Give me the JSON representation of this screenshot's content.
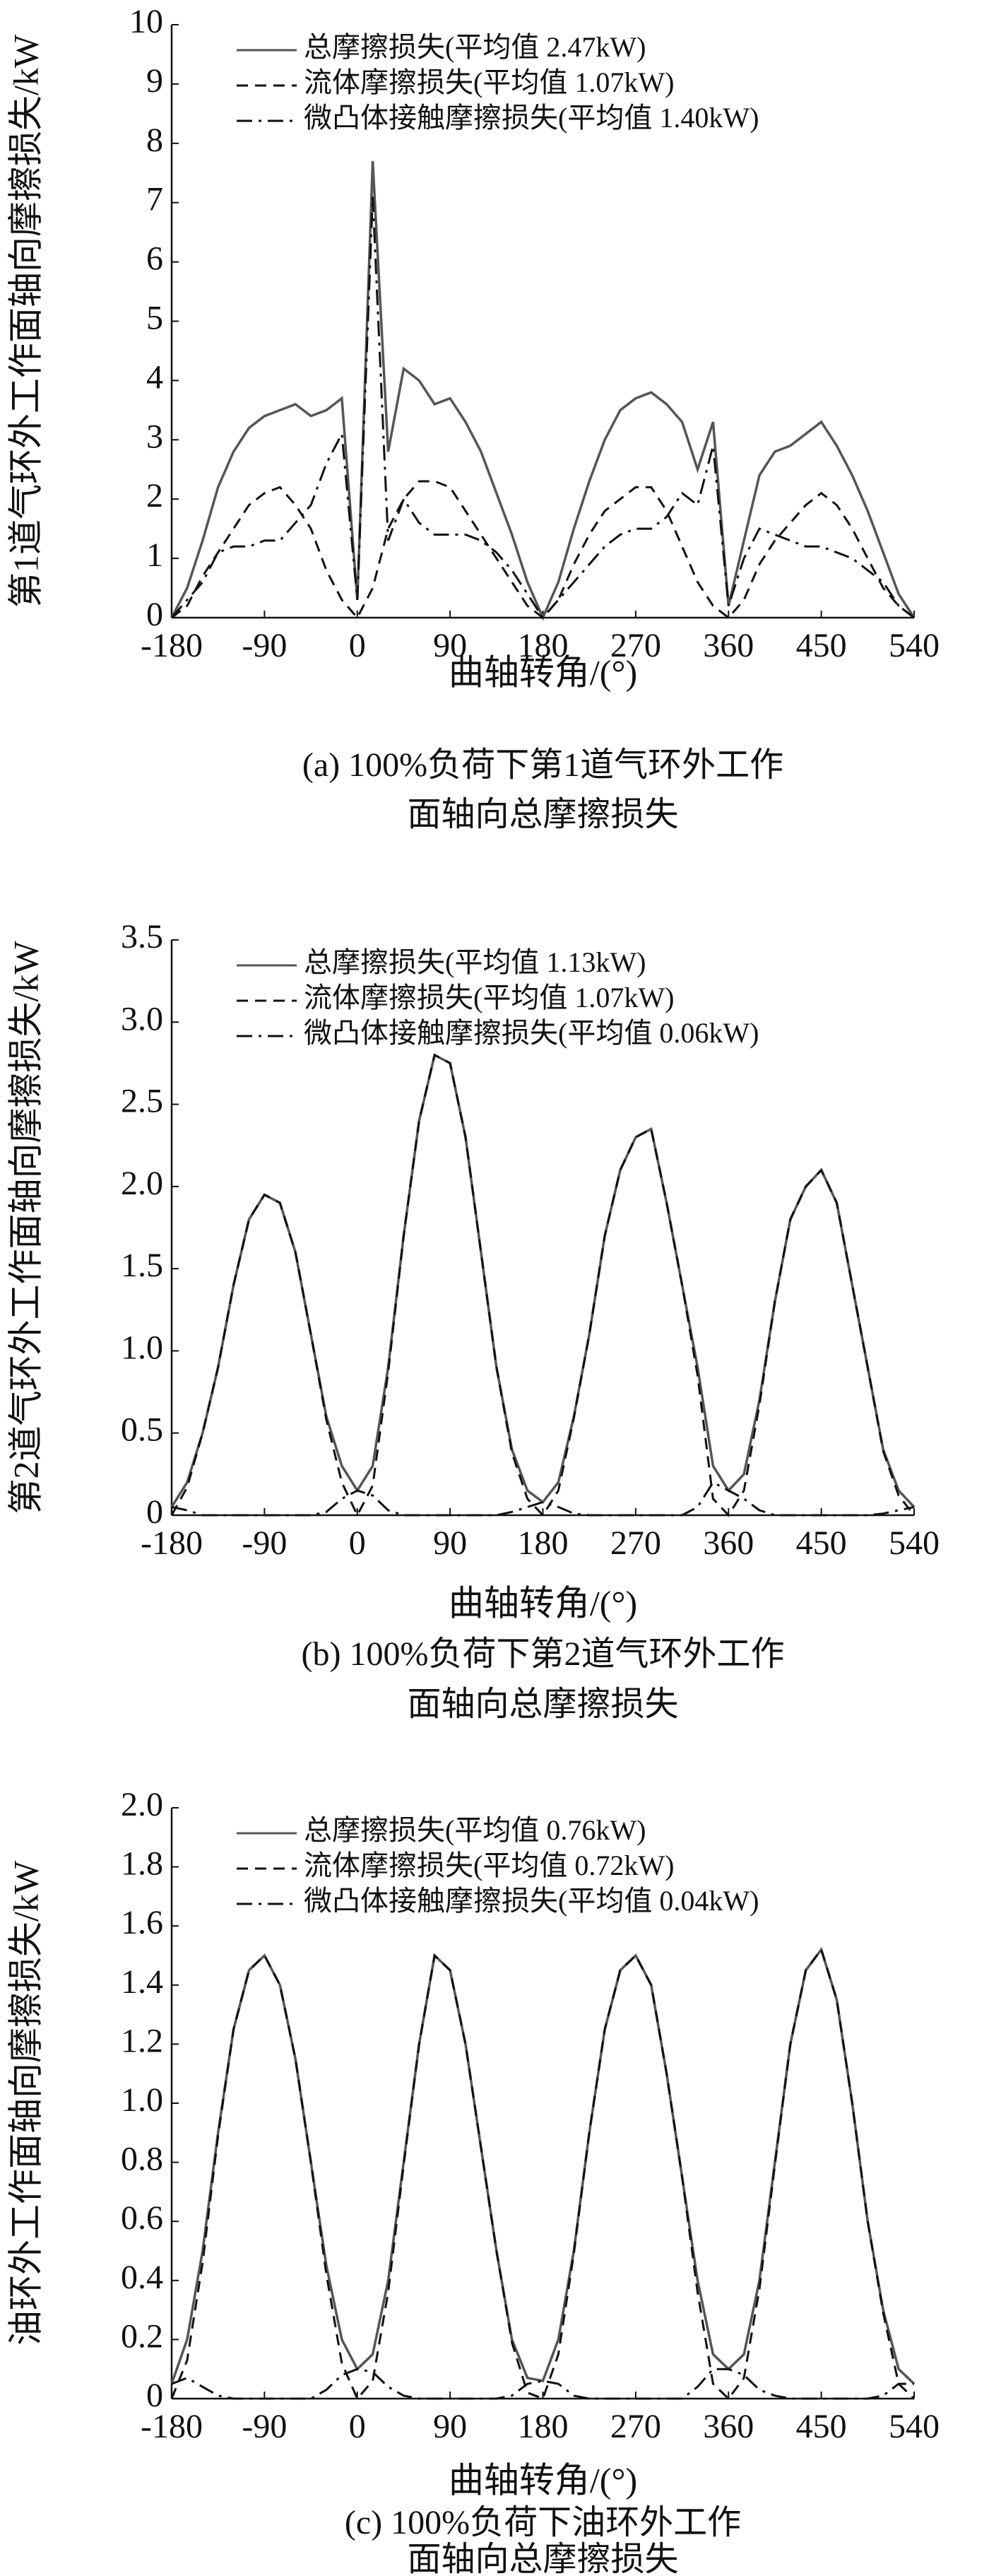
{
  "chart_data": [
    {
      "type": "line",
      "y_label": "第1道气环外工作面轴向摩擦损失/kW",
      "x_label": "曲轴转角/(°)",
      "caption": [
        "(a) 100%负荷下第1道气环外工作",
        "面轴向总摩擦损失"
      ],
      "x": [
        -180,
        -165,
        -150,
        -135,
        -120,
        -105,
        -90,
        -75,
        -60,
        -45,
        -30,
        -15,
        0,
        15,
        30,
        45,
        60,
        75,
        90,
        105,
        120,
        135,
        150,
        165,
        180,
        195,
        210,
        225,
        240,
        255,
        270,
        285,
        300,
        315,
        330,
        345,
        360,
        375,
        390,
        405,
        420,
        435,
        450,
        465,
        480,
        495,
        510,
        525,
        540
      ],
      "xlim": [
        -180,
        540
      ],
      "xticks": [
        -180,
        -90,
        0,
        90,
        180,
        270,
        360,
        450,
        540
      ],
      "ylim": [
        0,
        10
      ],
      "yticks": [
        0,
        1,
        2,
        3,
        4,
        5,
        6,
        7,
        8,
        9,
        10
      ],
      "series": [
        {
          "name": "总摩擦损失(平均值 2.47kW)",
          "color": "#555555",
          "line_style": "solid",
          "values": [
            0,
            0.5,
            1.3,
            2.2,
            2.8,
            3.2,
            3.4,
            3.5,
            3.6,
            3.4,
            3.5,
            3.7,
            0.3,
            7.7,
            2.8,
            4.2,
            4.0,
            3.6,
            3.7,
            3.3,
            2.8,
            2.1,
            1.4,
            0.6,
            0,
            0.6,
            1.5,
            2.3,
            3.0,
            3.5,
            3.7,
            3.8,
            3.6,
            3.3,
            2.5,
            3.3,
            0.2,
            1.3,
            2.4,
            2.8,
            2.9,
            3.1,
            3.3,
            2.9,
            2.4,
            1.8,
            1.1,
            0.4,
            0
          ]
        },
        {
          "name": "流体摩擦损失(平均值 1.07kW)",
          "color": "#111111",
          "line_style": "dashed",
          "values": [
            0,
            0.2,
            0.7,
            1.1,
            1.5,
            1.9,
            2.1,
            2.2,
            1.9,
            1.5,
            0.8,
            0.3,
            0,
            0.5,
            1.5,
            2.0,
            2.3,
            2.3,
            2.2,
            1.8,
            1.4,
            1.0,
            0.6,
            0.2,
            0,
            0.3,
            0.9,
            1.4,
            1.8,
            2.0,
            2.2,
            2.2,
            1.8,
            1.2,
            0.6,
            0.2,
            0,
            0.3,
            0.9,
            1.3,
            1.6,
            1.9,
            2.1,
            1.9,
            1.5,
            1.0,
            0.5,
            0.2,
            0
          ]
        },
        {
          "name": "微凸体接触摩擦损失(平均值 1.40kW)",
          "color": "#111111",
          "line_style": "dashdot",
          "values": [
            0,
            0.3,
            0.6,
            1.1,
            1.2,
            1.2,
            1.3,
            1.3,
            1.6,
            1.9,
            2.6,
            3.1,
            0.3,
            7.1,
            1.3,
            2.0,
            1.6,
            1.4,
            1.4,
            1.4,
            1.3,
            1.1,
            0.8,
            0.4,
            0,
            0.3,
            0.6,
            0.9,
            1.2,
            1.4,
            1.5,
            1.5,
            1.7,
            2.1,
            1.9,
            2.9,
            0.2,
            1.0,
            1.5,
            1.4,
            1.3,
            1.2,
            1.2,
            1.1,
            1.0,
            0.8,
            0.6,
            0.2,
            0
          ]
        }
      ]
    },
    {
      "type": "line",
      "y_label": "第2道气环外工作面轴向摩擦损失/kW",
      "x_label": "曲轴转角/(°)",
      "caption": [
        "(b) 100%负荷下第2道气环外工作",
        "面轴向总摩擦损失"
      ],
      "x": [
        -180,
        -165,
        -150,
        -135,
        -120,
        -105,
        -90,
        -75,
        -60,
        -45,
        -30,
        -15,
        0,
        15,
        30,
        45,
        60,
        75,
        90,
        105,
        120,
        135,
        150,
        165,
        180,
        195,
        210,
        225,
        240,
        255,
        270,
        285,
        300,
        315,
        330,
        345,
        360,
        375,
        390,
        405,
        420,
        435,
        450,
        465,
        480,
        495,
        510,
        525,
        540
      ],
      "xlim": [
        -180,
        540
      ],
      "xticks": [
        -180,
        -90,
        0,
        90,
        180,
        270,
        360,
        450,
        540
      ],
      "ylim": [
        0,
        3.5
      ],
      "yticks": [
        0,
        0.5,
        {
          "value": 1,
          "label": "1.0"
        },
        1.5,
        {
          "value": 2,
          "label": "2.0"
        },
        2.5,
        {
          "value": 3,
          "label": "3.0"
        },
        3.5
      ],
      "series": [
        {
          "name": "总摩擦损失(平均值 1.13kW)",
          "color": "#555555",
          "line_style": "solid",
          "values": [
            0.05,
            0.2,
            0.5,
            0.9,
            1.4,
            1.8,
            1.95,
            1.9,
            1.6,
            1.1,
            0.6,
            0.3,
            0.15,
            0.3,
            0.9,
            1.7,
            2.4,
            2.8,
            2.75,
            2.3,
            1.6,
            0.9,
            0.4,
            0.15,
            0.08,
            0.2,
            0.6,
            1.1,
            1.7,
            2.1,
            2.3,
            2.35,
            1.9,
            1.4,
            0.9,
            0.3,
            0.15,
            0.25,
            0.7,
            1.3,
            1.8,
            2.0,
            2.1,
            1.9,
            1.4,
            0.9,
            0.4,
            0.15,
            0.05
          ]
        },
        {
          "name": "流体摩擦损失(平均值 1.07kW)",
          "color": "#111111",
          "line_style": "dashed",
          "values": [
            0,
            0.17,
            0.5,
            0.9,
            1.4,
            1.8,
            1.95,
            1.9,
            1.6,
            1.1,
            0.58,
            0.2,
            0,
            0.18,
            0.87,
            1.7,
            2.4,
            2.8,
            2.75,
            2.3,
            1.6,
            0.9,
            0.38,
            0.1,
            0,
            0.15,
            0.59,
            1.1,
            1.7,
            2.1,
            2.3,
            2.35,
            1.9,
            1.4,
            0.85,
            0.1,
            0,
            0.15,
            0.67,
            1.3,
            1.8,
            2.0,
            2.1,
            1.9,
            1.4,
            0.9,
            0.39,
            0.12,
            0
          ]
        },
        {
          "name": "微凸体接触摩擦损失(平均值 0.06kW)",
          "color": "#111111",
          "line_style": "dashdot",
          "values": [
            0.05,
            0.03,
            0,
            0,
            0,
            0,
            0,
            0,
            0,
            0,
            0.02,
            0.1,
            0.15,
            0.12,
            0.03,
            0,
            0,
            0,
            0,
            0,
            0,
            0,
            0.02,
            0.05,
            0.08,
            0.05,
            0.01,
            0,
            0,
            0,
            0,
            0,
            0,
            0,
            0.05,
            0.2,
            0.15,
            0.1,
            0.03,
            0,
            0,
            0,
            0,
            0,
            0,
            0,
            0.01,
            0.03,
            0.05
          ]
        }
      ]
    },
    {
      "type": "line",
      "y_label": "油环外工作面轴向摩擦损失/kW",
      "x_label": "曲轴转角/(°)",
      "caption": [
        "(c) 100%负荷下油环外工作",
        "面轴向总摩擦损失"
      ],
      "x": [
        -180,
        -165,
        -150,
        -135,
        -120,
        -105,
        -90,
        -75,
        -60,
        -45,
        -30,
        -15,
        0,
        15,
        30,
        45,
        60,
        75,
        90,
        105,
        120,
        135,
        150,
        165,
        180,
        195,
        210,
        225,
        240,
        255,
        270,
        285,
        300,
        315,
        330,
        345,
        360,
        375,
        390,
        405,
        420,
        435,
        450,
        465,
        480,
        495,
        510,
        525,
        540
      ],
      "xlim": [
        -180,
        540
      ],
      "xticks": [
        -180,
        -90,
        0,
        90,
        180,
        270,
        360,
        450,
        540
      ],
      "ylim": [
        0,
        2
      ],
      "yticks": [
        0,
        0.2,
        0.4,
        0.6,
        0.8,
        {
          "value": 1,
          "label": "1.0"
        },
        1.2,
        1.4,
        1.6,
        1.8,
        {
          "value": 2,
          "label": "2.0"
        }
      ],
      "series": [
        {
          "name": "总摩擦损失(平均值 0.76kW)",
          "color": "#555555",
          "line_style": "solid",
          "values": [
            0.05,
            0.2,
            0.5,
            0.9,
            1.25,
            1.45,
            1.5,
            1.4,
            1.15,
            0.8,
            0.45,
            0.2,
            0.1,
            0.15,
            0.4,
            0.8,
            1.2,
            1.5,
            1.45,
            1.2,
            0.85,
            0.5,
            0.2,
            0.07,
            0.06,
            0.2,
            0.5,
            0.9,
            1.25,
            1.45,
            1.5,
            1.4,
            1.1,
            0.75,
            0.4,
            0.15,
            0.1,
            0.15,
            0.4,
            0.8,
            1.2,
            1.45,
            1.52,
            1.35,
            1.0,
            0.6,
            0.3,
            0.1,
            0.05
          ]
        },
        {
          "name": "流体摩擦损失(平均值 0.72kW)",
          "color": "#111111",
          "line_style": "dashed",
          "values": [
            0,
            0.13,
            0.46,
            0.89,
            1.25,
            1.45,
            1.5,
            1.4,
            1.15,
            0.8,
            0.42,
            0.12,
            0,
            0.06,
            0.36,
            0.79,
            1.2,
            1.5,
            1.45,
            1.2,
            0.85,
            0.5,
            0.19,
            0.02,
            0,
            0.15,
            0.49,
            0.9,
            1.25,
            1.45,
            1.5,
            1.4,
            1.1,
            0.75,
            0.36,
            0.05,
            0,
            0.07,
            0.37,
            0.79,
            1.2,
            1.45,
            1.52,
            1.35,
            1.0,
            0.6,
            0.29,
            0.05,
            0
          ]
        },
        {
          "name": "微凸体接触摩擦损失(平均值 0.04kW)",
          "color": "#111111",
          "line_style": "dashdot",
          "values": [
            0.05,
            0.07,
            0.04,
            0.01,
            0,
            0,
            0,
            0,
            0,
            0,
            0.03,
            0.08,
            0.1,
            0.09,
            0.04,
            0.01,
            0,
            0,
            0,
            0,
            0,
            0,
            0.01,
            0.05,
            0.06,
            0.05,
            0.01,
            0,
            0,
            0,
            0,
            0,
            0,
            0,
            0.04,
            0.1,
            0.1,
            0.08,
            0.03,
            0.01,
            0,
            0,
            0,
            0,
            0,
            0,
            0.01,
            0.05,
            0.05
          ]
        }
      ]
    }
  ]
}
